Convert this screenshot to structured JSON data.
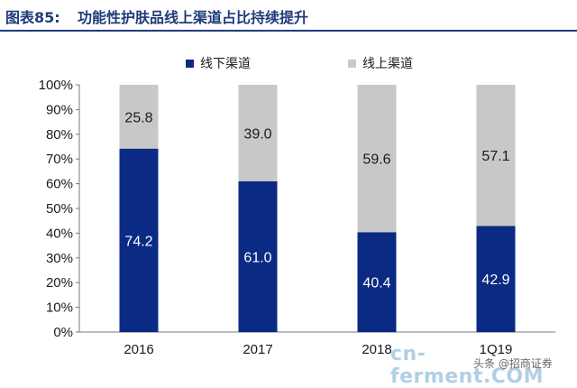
{
  "header": {
    "figure_label": "图表85:",
    "title": "功能性护肤品线上渠道占比持续提升"
  },
  "watermark": {
    "main": "cn-ferment.COM",
    "sub": "头条 @招商证券"
  },
  "chart_data": {
    "type": "bar",
    "stacked": true,
    "categories": [
      "2016",
      "2017",
      "2018",
      "1Q19"
    ],
    "series": [
      {
        "name": "线下渠道",
        "values": [
          74.2,
          61.0,
          40.4,
          42.9
        ],
        "color": "#0a2a83",
        "label_color": "#ffffff"
      },
      {
        "name": "线上渠道",
        "values": [
          25.8,
          39.0,
          59.6,
          57.1
        ],
        "color": "#c8c8c8",
        "label_color": "#1a1a1a"
      }
    ],
    "value_labels": [
      [
        "74.2",
        "61.0",
        "40.4",
        "42.9"
      ],
      [
        "25.8",
        "39.0",
        "59.6",
        "57.1"
      ]
    ],
    "ylim": [
      0,
      100
    ],
    "yticks": [
      "0%",
      "10%",
      "20%",
      "30%",
      "40%",
      "50%",
      "60%",
      "70%",
      "80%",
      "90%",
      "100%"
    ],
    "grid": false,
    "legend_position": "top"
  }
}
